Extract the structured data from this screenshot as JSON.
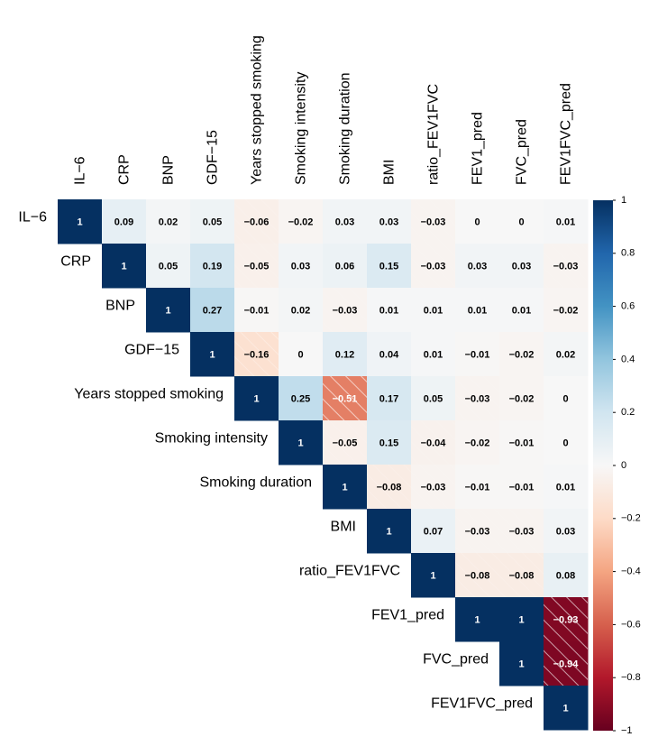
{
  "chart_data": {
    "type": "heatmap",
    "variables": [
      "IL−6",
      "CRP",
      "BNP",
      "GDF−15",
      "Years stopped smoking",
      "Smoking intensity",
      "Smoking duration",
      "BMI",
      "ratio_FEV1FVC",
      "FEV1_pred",
      "FVC_pred",
      "FEV1FVC_pred"
    ],
    "values": [
      [
        1,
        0.09,
        0.02,
        0.05,
        -0.06,
        -0.02,
        0.03,
        0.03,
        -0.03,
        0,
        0,
        0.01
      ],
      [
        null,
        1,
        0.05,
        0.19,
        -0.05,
        0.03,
        0.06,
        0.15,
        -0.03,
        0.03,
        0.03,
        -0.03
      ],
      [
        null,
        null,
        1,
        0.27,
        -0.01,
        0.02,
        -0.03,
        0.01,
        0.01,
        0.01,
        0.01,
        -0.02
      ],
      [
        null,
        null,
        null,
        1,
        -0.16,
        0,
        0.12,
        0.04,
        0.01,
        -0.01,
        -0.02,
        0.02
      ],
      [
        null,
        null,
        null,
        null,
        1,
        0.25,
        -0.51,
        0.17,
        0.05,
        -0.03,
        -0.02,
        0
      ],
      [
        null,
        null,
        null,
        null,
        null,
        1,
        -0.05,
        0.15,
        -0.04,
        -0.02,
        -0.01,
        0
      ],
      [
        null,
        null,
        null,
        null,
        null,
        null,
        1,
        -0.08,
        -0.03,
        -0.01,
        -0.01,
        0.01
      ],
      [
        null,
        null,
        null,
        null,
        null,
        null,
        null,
        1,
        0.07,
        -0.03,
        -0.03,
        0.03
      ],
      [
        null,
        null,
        null,
        null,
        null,
        null,
        null,
        null,
        1,
        -0.08,
        -0.08,
        0.08
      ],
      [
        null,
        null,
        null,
        null,
        null,
        null,
        null,
        null,
        null,
        1,
        1,
        -0.93
      ],
      [
        null,
        null,
        null,
        null,
        null,
        null,
        null,
        null,
        null,
        null,
        1,
        -0.94
      ],
      [
        null,
        null,
        null,
        null,
        null,
        null,
        null,
        null,
        null,
        null,
        null,
        1
      ]
    ],
    "value_labels": [
      [
        "1",
        "0.09",
        "0.02",
        "0.05",
        "−0.06",
        "−0.02",
        "0.03",
        "0.03",
        "−0.03",
        "0",
        "0",
        "0.01"
      ],
      [
        null,
        "1",
        "0.05",
        "0.19",
        "−0.05",
        "0.03",
        "0.06",
        "0.15",
        "−0.03",
        "0.03",
        "0.03",
        "−0.03"
      ],
      [
        null,
        null,
        "1",
        "0.27",
        "−0.01",
        "0.02",
        "−0.03",
        "0.01",
        "0.01",
        "0.01",
        "0.01",
        "−0.02"
      ],
      [
        null,
        null,
        null,
        "1",
        "−0.16",
        "0",
        "0.12",
        "0.04",
        "0.01",
        "−0.01",
        "−0.02",
        "0.02"
      ],
      [
        null,
        null,
        null,
        null,
        "1",
        "0.25",
        "−0.51",
        "0.17",
        "0.05",
        "−0.03",
        "−0.02",
        "0"
      ],
      [
        null,
        null,
        null,
        null,
        null,
        "1",
        "−0.05",
        "0.15",
        "−0.04",
        "−0.02",
        "−0.01",
        "0"
      ],
      [
        null,
        null,
        null,
        null,
        null,
        null,
        "1",
        "−0.08",
        "−0.03",
        "−0.01",
        "−0.01",
        "0.01"
      ],
      [
        null,
        null,
        null,
        null,
        null,
        null,
        null,
        "1",
        "0.07",
        "−0.03",
        "−0.03",
        "0.03"
      ],
      [
        null,
        null,
        null,
        null,
        null,
        null,
        null,
        null,
        "1",
        "−0.08",
        "−0.08",
        "0.08"
      ],
      [
        null,
        null,
        null,
        null,
        null,
        null,
        null,
        null,
        null,
        "1",
        "1",
        "−0.93"
      ],
      [
        null,
        null,
        null,
        null,
        null,
        null,
        null,
        null,
        null,
        null,
        "1",
        "−0.94"
      ],
      [
        null,
        null,
        null,
        null,
        null,
        null,
        null,
        null,
        null,
        null,
        null,
        "1"
      ]
    ],
    "colormap": [
      "#67001f",
      "#b2182b",
      "#d6604d",
      "#f4a582",
      "#fddbc7",
      "#f7f7f7",
      "#d1e5f0",
      "#92c5de",
      "#4393c3",
      "#2166ac",
      "#053061"
    ],
    "clim": [
      -1,
      1
    ],
    "cticks": [
      1,
      {
        "value": 0.8,
        "label": "0.8"
      },
      {
        "value": 0.6,
        "label": "0.6"
      },
      {
        "value": 0.4,
        "label": "0.4"
      },
      {
        "value": 0.2,
        "label": "0.2"
      },
      0,
      {
        "value": -0.2,
        "label": "−0.2"
      },
      {
        "value": -0.4,
        "label": "−0.4"
      },
      {
        "value": -0.6,
        "label": "−0.6"
      },
      {
        "value": -0.8,
        "label": "−0.8"
      },
      {
        "value": -1,
        "label": "−1"
      }
    ],
    "hatch_negative": true
  }
}
